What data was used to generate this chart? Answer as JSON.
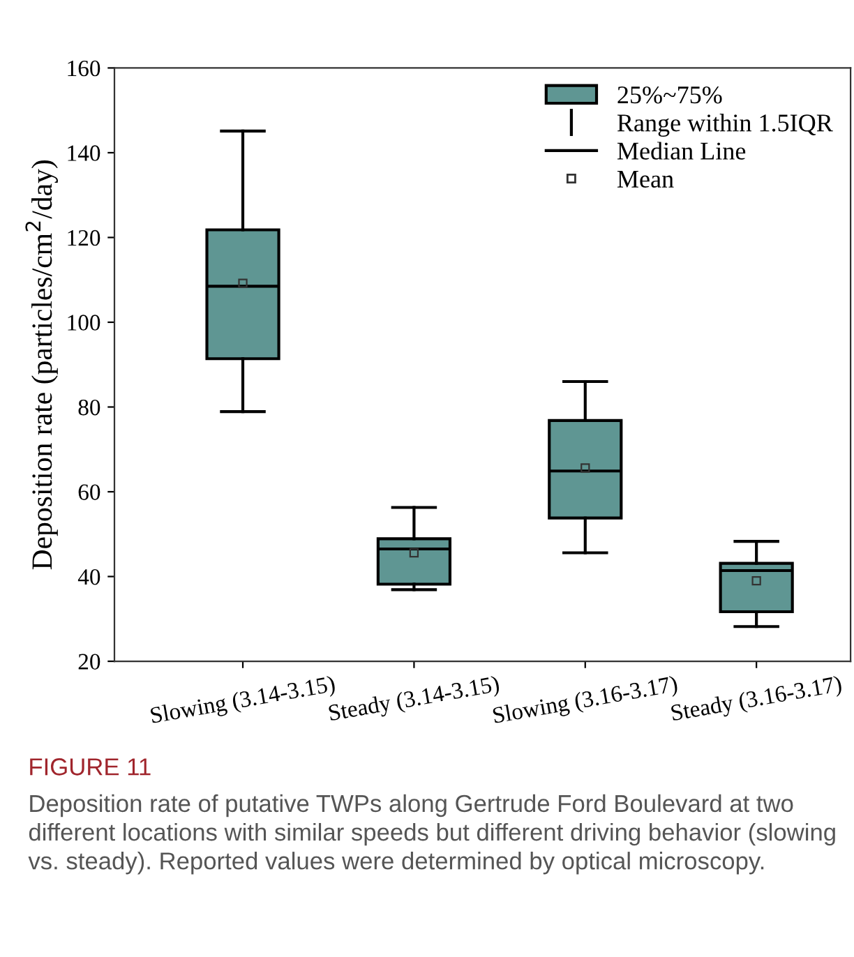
{
  "chart_data": {
    "type": "box",
    "ylabel": "Deposition rate (particles/cm$^{2}$/day)",
    "categories": [
      "Slowing (3.14-3.15)",
      "Steady (3.14-3.15)",
      "Slowing (3.16-3.17)",
      "Steady (3.16-3.17)"
    ],
    "boxes": [
      {
        "low": 78.9,
        "q1": 91.4,
        "median": 108.5,
        "q3": 121.8,
        "high": 145.1,
        "mean": 109.2
      },
      {
        "low": 36.9,
        "q1": 38.2,
        "median": 46.5,
        "q3": 48.9,
        "high": 56.3,
        "mean": 45.6
      },
      {
        "low": 45.6,
        "q1": 53.8,
        "median": 64.9,
        "q3": 76.8,
        "high": 86.0,
        "mean": 65.6
      },
      {
        "low": 28.2,
        "q1": 31.7,
        "median": 41.4,
        "q3": 43.1,
        "high": 48.3,
        "mean": 39.0
      }
    ],
    "color": "#5f9693",
    "ylim": [
      20,
      160
    ],
    "yticks": [
      20,
      40,
      60,
      80,
      100,
      120,
      140,
      160
    ],
    "annotations": [
      "25%~75%",
      "Range within 1.5IQR",
      "Median Line",
      "Mean",
      "FIGURE 11",
      "Deposition rate of putative TWPs along Gertrude Ford Boulevard at two different locations with similar speeds but different driving behavior (slowing vs. steady). Reported values were determined by optical microscopy."
    ]
  }
}
